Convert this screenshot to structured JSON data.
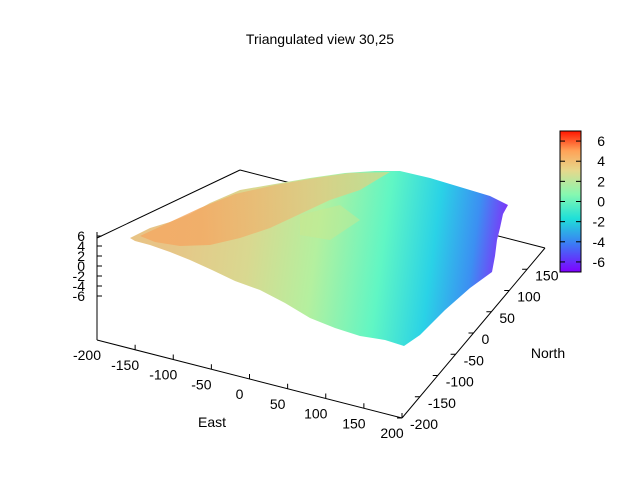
{
  "chart_data": {
    "type": "surface",
    "title": "Triangulated view 30,25",
    "xlabel": "East",
    "ylabel": "North",
    "zlabel": "",
    "view": "30,25",
    "xlim": [
      -200,
      200
    ],
    "ylim": [
      -200,
      200
    ],
    "zlim": [
      -7,
      7
    ],
    "x_ticks": [
      "-200",
      "-150",
      "-100",
      "-50",
      "0",
      "50",
      "100",
      "150",
      "200"
    ],
    "y_ticks": [
      "-200",
      "-150",
      "-100",
      "-50",
      "0",
      "50",
      "100",
      "150"
    ],
    "z_ticks": [
      "6",
      "4",
      "2",
      "0",
      "-2",
      "-4",
      "-6"
    ],
    "colorbar": {
      "palette": "rainbow",
      "range": [
        -7,
        7
      ],
      "ticks": [
        "6",
        "4",
        "2",
        "0",
        "-2",
        "-4",
        "-6"
      ]
    },
    "surface_summary": {
      "low_east_edge": -6,
      "high_west_edge": 3,
      "trend": "decreasing toward the east"
    }
  }
}
